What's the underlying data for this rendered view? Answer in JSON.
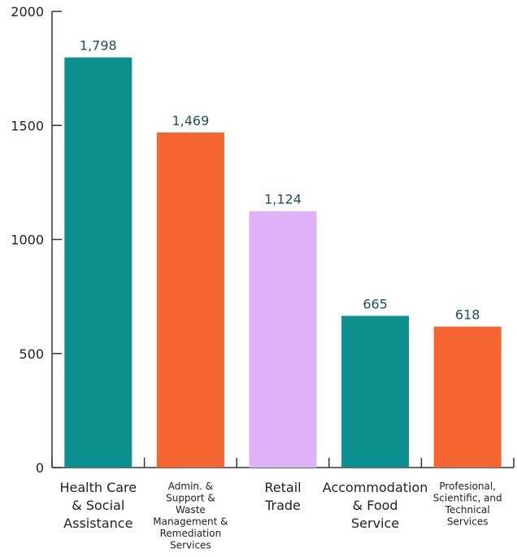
{
  "chart_data": {
    "type": "bar",
    "categories": [
      [
        "Health Care",
        "& Social",
        "Assistance"
      ],
      [
        "Admin. &",
        "Support &",
        "Waste",
        "Management &",
        "Remediation",
        "Services"
      ],
      [
        "Retail",
        "Trade"
      ],
      [
        "Accommodation",
        "& Food",
        "Service"
      ],
      [
        "Profesional,",
        "Scientific, and",
        "Technical",
        "Services"
      ]
    ],
    "values": [
      1798,
      1469,
      1124,
      665,
      618
    ],
    "data_labels": [
      "1,798",
      "1,469",
      "1,124",
      "665",
      "618"
    ],
    "bar_colors": [
      "#0f9090",
      "#f46530",
      "#dfb3f7",
      "#0f9090",
      "#f46530"
    ],
    "y_ticks": [
      0,
      500,
      1000,
      1500,
      2000
    ],
    "ylim": [
      0,
      2000
    ],
    "title": "",
    "xlabel": "",
    "ylabel": "",
    "grid": false,
    "legend": "none"
  }
}
